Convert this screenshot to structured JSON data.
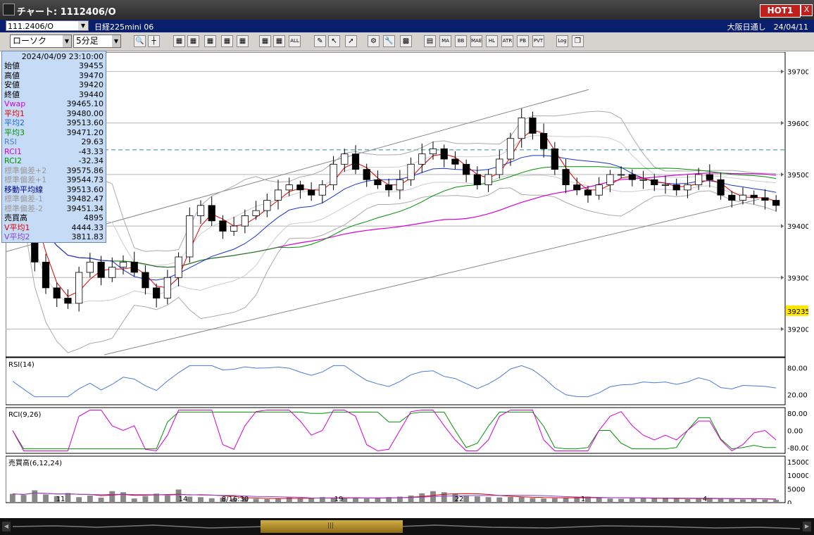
{
  "window": {
    "title": "チャート: 1112406/O",
    "hot_label": "HOT1",
    "close_label": "X"
  },
  "infobar": {
    "symbol": "111.2406/O",
    "instrument": "日経225mini 06",
    "right_text": "大阪日通し　24/04/11"
  },
  "toolbar": {
    "chart_type": "ローソク",
    "timeframe": "5分足",
    "buttons": [
      {
        "name": "zoom-button",
        "icon": "magnifier-icon",
        "label": ""
      },
      {
        "name": "crosshair-button",
        "icon": "crosshair-icon",
        "label": ""
      },
      {
        "name": "tool3-button",
        "icon": "tool-icon",
        "label": ""
      },
      {
        "name": "tool4-button",
        "icon": "tool-icon",
        "label": ""
      },
      {
        "name": "tool5-button",
        "icon": "tool-icon",
        "label": ""
      },
      {
        "name": "tool6-button",
        "icon": "tool-icon",
        "label": ""
      },
      {
        "name": "tool7-button",
        "icon": "tool-icon",
        "label": ""
      },
      {
        "name": "tool8-button",
        "icon": "tool-icon",
        "label": ""
      },
      {
        "name": "tool9-button",
        "icon": "tool-icon",
        "label": ""
      },
      {
        "name": "all-button",
        "icon": "",
        "label": "ALL"
      },
      {
        "name": "pen-button",
        "icon": "pen-icon",
        "label": ""
      },
      {
        "name": "pointer-button",
        "icon": "pointer-icon",
        "label": ""
      },
      {
        "name": "arrow-button",
        "icon": "arrow-icon",
        "label": ""
      },
      {
        "name": "settings-button",
        "icon": "gear-icon",
        "label": ""
      },
      {
        "name": "wrench-button",
        "icon": "wrench-icon",
        "label": ""
      },
      {
        "name": "color-button",
        "icon": "palette-icon",
        "label": ""
      },
      {
        "name": "table-button",
        "icon": "table-icon",
        "label": ""
      },
      {
        "name": "ma-button",
        "icon": "",
        "label": "MA"
      },
      {
        "name": "bb-button",
        "icon": "",
        "label": "BB"
      },
      {
        "name": "mae-button",
        "icon": "",
        "label": "MAE"
      },
      {
        "name": "hl-button",
        "icon": "",
        "label": "HL"
      },
      {
        "name": "atr-button",
        "icon": "",
        "label": "ATR"
      },
      {
        "name": "pb-button",
        "icon": "",
        "label": "PB"
      },
      {
        "name": "pvt-button",
        "icon": "",
        "label": "PVT"
      },
      {
        "name": "log-button",
        "icon": "",
        "label": "Log"
      },
      {
        "name": "window-button",
        "icon": "window-icon",
        "label": ""
      }
    ]
  },
  "info_panel": {
    "datetime": "2024/04/09  23:10:00",
    "rows": [
      {
        "label": "始値",
        "value": "39455",
        "color": "#000000"
      },
      {
        "label": "高値",
        "value": "39470",
        "color": "#000000"
      },
      {
        "label": "安値",
        "value": "39420",
        "color": "#000000"
      },
      {
        "label": "終値",
        "value": "39440",
        "color": "#000000"
      },
      {
        "label": "Vwap",
        "value": "39465.10",
        "color": "#d400d4"
      },
      {
        "label": "平均1",
        "value": "39480.00",
        "color": "#e00000"
      },
      {
        "label": "平均2",
        "value": "39513.60",
        "color": "#1a66dd"
      },
      {
        "label": "平均3",
        "value": "39471.20",
        "color": "#009000"
      },
      {
        "label": "RSI",
        "value": "29.63",
        "color": "#4a7bd4"
      },
      {
        "label": "RCI1",
        "value": "-43.33",
        "color": "#d400d4"
      },
      {
        "label": "RCI2",
        "value": "-32.34",
        "color": "#009000"
      },
      {
        "label": "標準偏差+2",
        "value": "39575.86",
        "color": "#999999"
      },
      {
        "label": "標準偏差+1",
        "value": "39544.73",
        "color": "#999999"
      },
      {
        "label": "移動平均線",
        "value": "39513.60",
        "color": "#000088"
      },
      {
        "label": "標準偏差-1",
        "value": "39482.47",
        "color": "#999999"
      },
      {
        "label": "標準偏差-2",
        "value": "39451.34",
        "color": "#999999"
      },
      {
        "label": "売買高",
        "value": "4895",
        "color": "#000000"
      },
      {
        "label": "V平均1",
        "value": "4444.33",
        "color": "#e00000"
      },
      {
        "label": "V平均2",
        "value": "3811.83",
        "color": "#8a3fd4"
      }
    ]
  },
  "main_chart": {
    "price_ticks": [
      "39700",
      "39600",
      "39500",
      "39400",
      "39300",
      "39200"
    ],
    "current_price": "39235",
    "dashed_level": 39548
  },
  "rsi_panel": {
    "label": "RSI(14)",
    "ticks": [
      "80.00",
      "20.00"
    ]
  },
  "rci_panel": {
    "label": "RCI(9,26)",
    "ticks": [
      "80.00",
      "0.00",
      "-80.00"
    ]
  },
  "volume_panel": {
    "label": "売買高(6,12,24)",
    "ticks": [
      "15000",
      "10000",
      "5000",
      "0"
    ]
  },
  "x_axis": {
    "labels": [
      "11",
      "14",
      "8/16:30",
      "19",
      "22",
      "1",
      "4"
    ]
  },
  "chart_data": {
    "type": "candlestick",
    "close_series": [
      39500,
      39440,
      39330,
      39280,
      39260,
      39250,
      39310,
      39330,
      39300,
      39320,
      39330,
      39310,
      39280,
      39260,
      39300,
      39340,
      39420,
      39440,
      39410,
      39390,
      39400,
      39420,
      39430,
      39450,
      39470,
      39480,
      39470,
      39460,
      39480,
      39520,
      39540,
      39510,
      39490,
      39480,
      39470,
      39490,
      39520,
      39540,
      39550,
      39530,
      39520,
      39500,
      39480,
      39500,
      39530,
      39570,
      39610,
      39580,
      39550,
      39510,
      39480,
      39470,
      39460,
      39480,
      39500,
      39500,
      39490,
      39490,
      39480,
      39480,
      39470,
      39480,
      39500,
      39490,
      39460,
      39450,
      39460,
      39455,
      39450,
      39440
    ],
    "volume_series": [
      3200,
      2800,
      4500,
      3000,
      2400,
      3500,
      2000,
      2600,
      1800,
      4200,
      3800,
      1500,
      2400,
      3300,
      2600,
      4800,
      2200,
      2000,
      1600,
      1800,
      1500,
      1700,
      1400,
      1300,
      1500,
      1900,
      1700,
      1800,
      2000,
      1600,
      1700,
      1900,
      1500,
      1600,
      2000,
      2200,
      2600,
      3400,
      4200,
      3800,
      3100,
      2600,
      2300,
      2000,
      1900,
      2100,
      2000,
      1700,
      1500,
      1600,
      1800,
      2000,
      2200,
      1700,
      1500,
      1400,
      1600,
      1800,
      1500,
      1600,
      1400,
      1300,
      1500,
      1700,
      1500,
      1300,
      1200,
      1400,
      1100,
      1000
    ],
    "ylim": [
      39150,
      39735
    ]
  }
}
